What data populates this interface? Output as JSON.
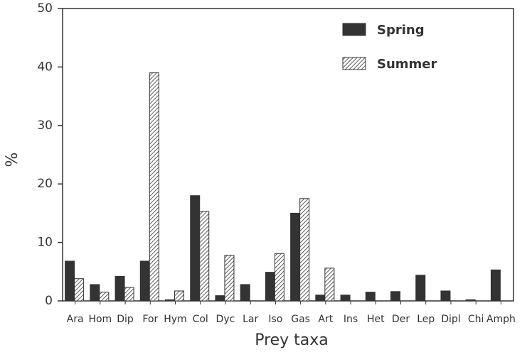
{
  "chart_data": {
    "type": "bar",
    "xlabel": "Prey taxa",
    "ylabel": "%",
    "categories": [
      "Ara",
      "Hom",
      "Dip",
      "For",
      "Hym",
      "Col",
      "Dyc",
      "Lar",
      "Iso",
      "Gas",
      "Art",
      "Ins",
      "Het",
      "Der",
      "Lep",
      "Dipl",
      "Chi",
      "Amph"
    ],
    "series": [
      {
        "name": "Spring",
        "color": "#333333",
        "fill": "solid",
        "values": [
          6.8,
          2.8,
          4.2,
          6.8,
          0.2,
          18,
          0.9,
          2.8,
          4.9,
          15,
          1,
          1,
          1.5,
          1.6,
          4.4,
          1.7,
          0.2,
          5.3
        ]
      },
      {
        "name": "Summer",
        "color": "#333333",
        "fill": "hatch",
        "values": [
          3.8,
          1.5,
          2.3,
          39,
          1.7,
          15.3,
          7.8,
          0,
          8.1,
          17.5,
          5.6,
          0,
          0,
          0,
          0,
          0,
          0,
          0
        ]
      }
    ],
    "ylim": [
      0,
      50
    ],
    "yticks": [
      0,
      10,
      20,
      30,
      40,
      50
    ],
    "legend": "upper right"
  }
}
